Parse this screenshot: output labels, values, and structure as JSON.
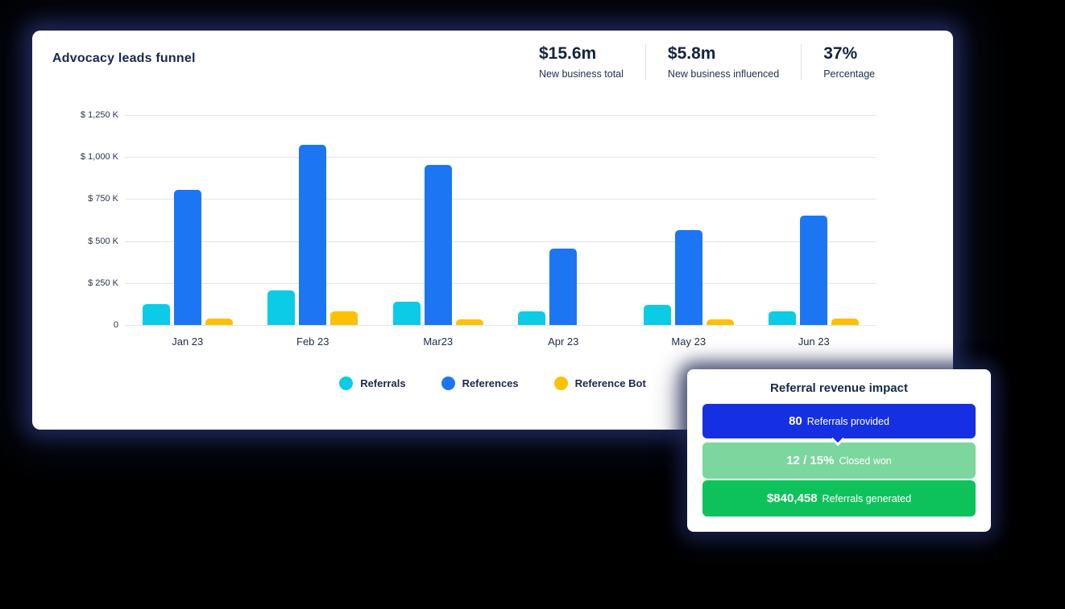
{
  "main_card": {
    "title": "Advocacy leads funnel",
    "stats": [
      {
        "value": "$15.6m",
        "label": "New business total"
      },
      {
        "value": "$5.8m",
        "label": "New business influenced"
      },
      {
        "value": "37%",
        "label": "Percentage"
      }
    ]
  },
  "chart_data": {
    "type": "bar",
    "title": "Advocacy leads funnel",
    "categories": [
      "Jan 23",
      "Feb 23",
      "Mar23",
      "Apr 23",
      "May 23",
      "Jun 23"
    ],
    "series": [
      {
        "name": "Referrals",
        "color": "#0bcbe6",
        "values": [
          125,
          207,
          140,
          82,
          120,
          82
        ]
      },
      {
        "name": "References",
        "color": "#1c76f3",
        "values": [
          805,
          1072,
          955,
          455,
          565,
          650
        ]
      },
      {
        "name": "Reference Bot",
        "color": "#fcc104",
        "values": [
          38,
          80,
          35,
          0,
          35,
          38
        ]
      }
    ],
    "value_unit": "$K",
    "ylabel_ticks": [
      "$ 1,250 K",
      "$ 1,000 K",
      "$ 750 K",
      "$ 500 K",
      "$ 250 K",
      "0"
    ],
    "ymax": 1250,
    "ymin": 0,
    "grid": true,
    "legend_position": "bottom"
  },
  "impact_card": {
    "title": "Referral revenue impact",
    "steps": [
      {
        "value": "80",
        "label": "Referrals provided",
        "color": "#1530e2"
      },
      {
        "value": "12 / 15%",
        "label": "Closed won",
        "color": "#7bd79d"
      },
      {
        "value": "$840,458",
        "label": "Referrals generated",
        "color": "#0ec25b"
      }
    ]
  },
  "colors": {
    "background": "#000000",
    "card": "#ffffff",
    "text_navy": "#18294a",
    "gridline": "#e1e5f0",
    "divider": "#d9dde6"
  }
}
